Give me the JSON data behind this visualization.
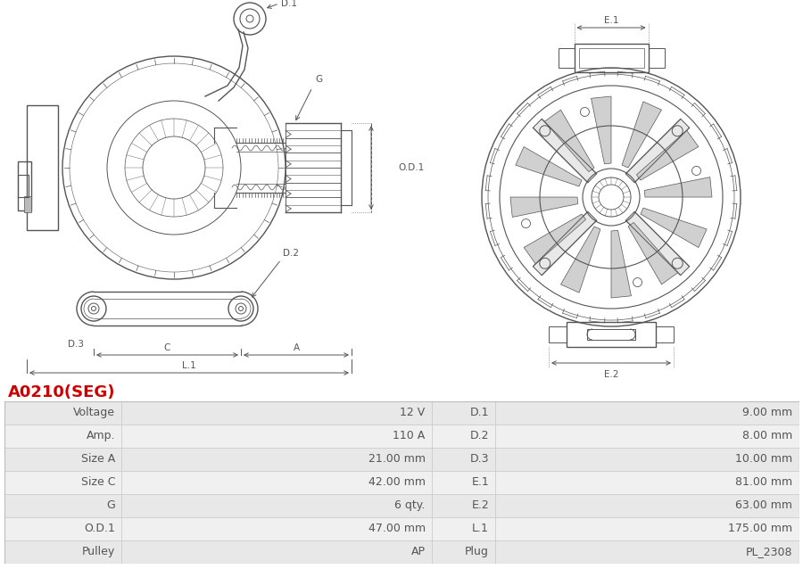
{
  "title": "A0210(SEG)",
  "title_color": "#cc0000",
  "title_fontsize": 13,
  "table_data": [
    [
      "Voltage",
      "12 V",
      "D.1",
      "9.00 mm"
    ],
    [
      "Amp.",
      "110 A",
      "D.2",
      "8.00 mm"
    ],
    [
      "Size A",
      "21.00 mm",
      "D.3",
      "10.00 mm"
    ],
    [
      "Size C",
      "42.00 mm",
      "E.1",
      "81.00 mm"
    ],
    [
      "G",
      "6 qty.",
      "E.2",
      "63.00 mm"
    ],
    [
      "O.D.1",
      "47.00 mm",
      "L.1",
      "175.00 mm"
    ],
    [
      "Pulley",
      "AP",
      "Plug",
      "PL_2308"
    ]
  ],
  "table_bg_odd": "#e8e8e8",
  "table_bg_even": "#f0f0f0",
  "table_text_color": "#555555",
  "table_fontsize": 9,
  "line_color": "#555555",
  "lw_main": 1.0,
  "lw_detail": 0.6,
  "lw_dim": 0.7
}
